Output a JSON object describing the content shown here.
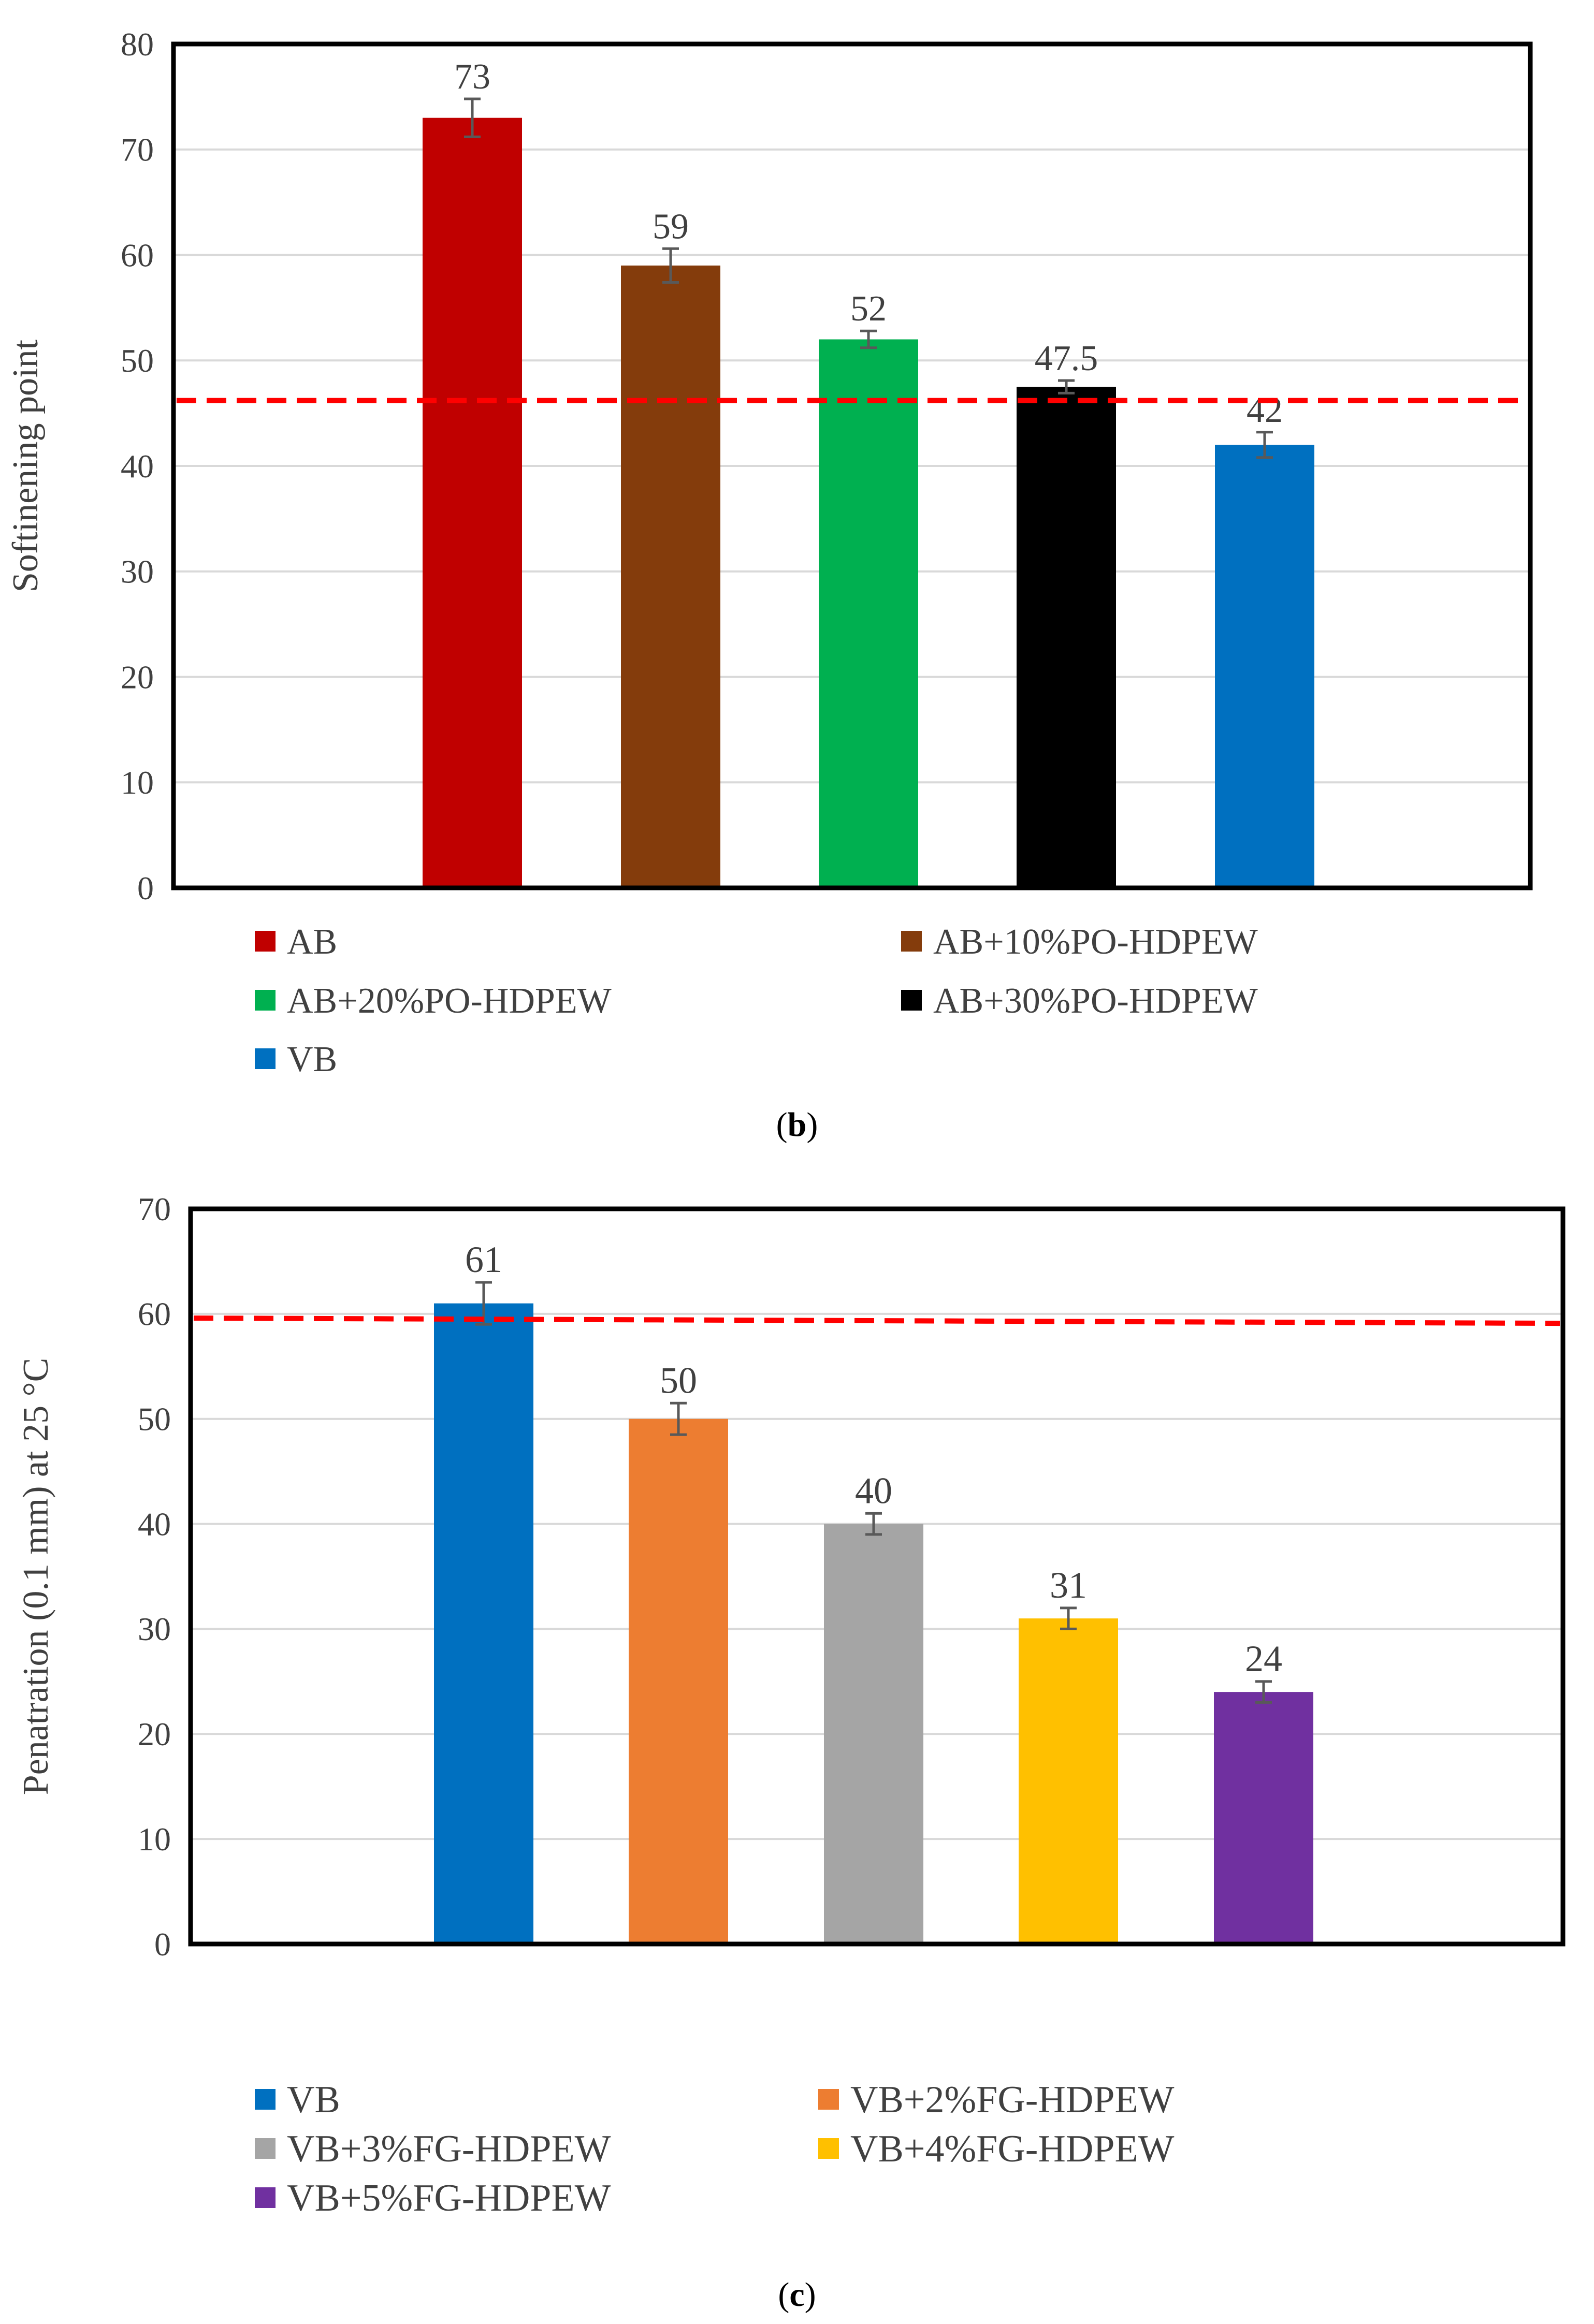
{
  "panel_b": {
    "caption_open": "(",
    "caption_letter": "b",
    "caption_close": ")",
    "legend": [
      "AB",
      "AB+10%PO-HDPEW",
      "AB+20%PO-HDPEW",
      "AB+30%PO-HDPEW",
      "VB"
    ]
  },
  "panel_c": {
    "caption_open": "(",
    "caption_letter": "c",
    "caption_close": ")",
    "legend": [
      "VB",
      "VB+2%FG-HDPEW",
      "VB+3%FG-HDPEW",
      "VB+4%FG-HDPEW",
      "VB+5%FG-HDPEW"
    ]
  },
  "chart_data": [
    {
      "type": "bar",
      "panel": "b",
      "title": "",
      "xlabel": "",
      "ylabel": "Softinening point",
      "ylim": [
        0,
        80
      ],
      "yticks": [
        0,
        10,
        20,
        30,
        40,
        50,
        60,
        70,
        80
      ],
      "grid": true,
      "categories": [
        "AB",
        "AB+10%PO-HDPEW",
        "AB+20%PO-HDPEW",
        "AB+30%PO-HDPEW",
        "VB"
      ],
      "values": [
        73,
        59,
        52,
        47.5,
        42
      ],
      "data_labels": [
        "73",
        "59",
        "52",
        "47.5",
        "42"
      ],
      "error": [
        1.8,
        1.6,
        0.8,
        0.6,
        1.2
      ],
      "colors": [
        "#C00000",
        "#843C0C",
        "#00B050",
        "#000000",
        "#0070C0"
      ],
      "reference_line": {
        "value": 46.2,
        "color": "#FF0000",
        "style": "dashed"
      },
      "legend_position": "bottom"
    },
    {
      "type": "bar",
      "panel": "c",
      "title": "",
      "xlabel": "",
      "ylabel": "Penatration (0.1 mm) at 25 °C",
      "ylim": [
        0,
        70
      ],
      "yticks": [
        0,
        10,
        20,
        30,
        40,
        50,
        60,
        70
      ],
      "grid": true,
      "categories": [
        "VB",
        "VB+2%FG-HDPEW",
        "VB+3%FG-HDPEW",
        "VB+4%FG-HDPEW",
        "VB+5%FG-HDPEW"
      ],
      "values": [
        61,
        50,
        40,
        31,
        24
      ],
      "data_labels": [
        "61",
        "50",
        "40",
        "31",
        "24"
      ],
      "error": [
        2,
        1.5,
        1,
        1,
        1
      ],
      "colors": [
        "#0070C0",
        "#ED7D31",
        "#A5A5A5",
        "#FFC000",
        "#7030A0"
      ],
      "reference_line": {
        "value_start": 59.6,
        "value_end": 59.1,
        "color": "#FF0000",
        "style": "dashed"
      },
      "legend_position": "bottom"
    }
  ]
}
